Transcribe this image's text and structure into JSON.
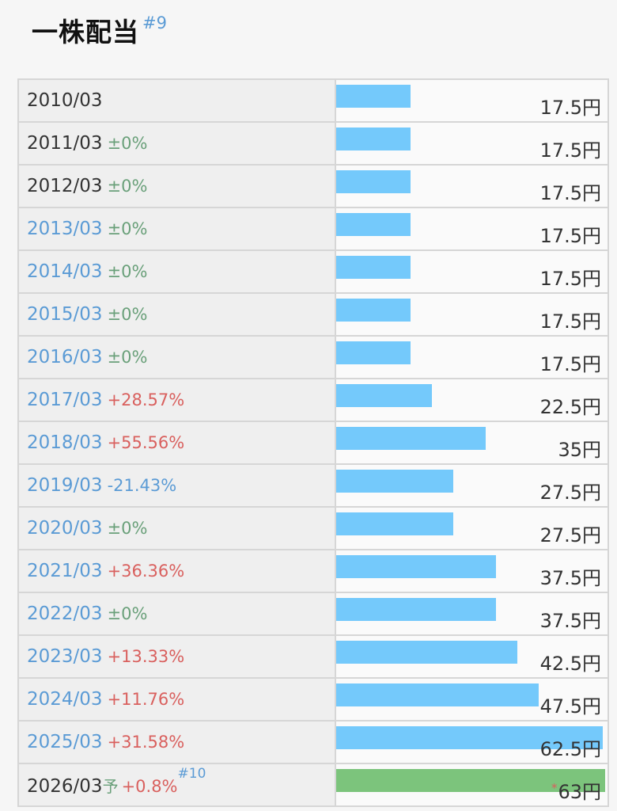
{
  "header": {
    "title": "一株配当",
    "note": "#9"
  },
  "rows": [
    {
      "year": "2010/03",
      "change": "",
      "value": "17.5円",
      "link": false
    },
    {
      "year": "2011/03",
      "change": "±0%",
      "value": "17.5円",
      "link": false
    },
    {
      "year": "2012/03",
      "change": "±0%",
      "value": "17.5円",
      "link": false
    },
    {
      "year": "2013/03",
      "change": "±0%",
      "value": "17.5円",
      "link": true
    },
    {
      "year": "2014/03",
      "change": "±0%",
      "value": "17.5円",
      "link": true
    },
    {
      "year": "2015/03",
      "change": "±0%",
      "value": "17.5円",
      "link": true
    },
    {
      "year": "2016/03",
      "change": "±0%",
      "value": "17.5円",
      "link": true
    },
    {
      "year": "2017/03",
      "change": "+28.57%",
      "value": "22.5円",
      "link": true
    },
    {
      "year": "2018/03",
      "change": "+55.56%",
      "value": "35円",
      "link": true
    },
    {
      "year": "2019/03",
      "change": "-21.43%",
      "value": "27.5円",
      "link": true
    },
    {
      "year": "2020/03",
      "change": "±0%",
      "value": "27.5円",
      "link": true
    },
    {
      "year": "2021/03",
      "change": "+36.36%",
      "value": "37.5円",
      "link": true
    },
    {
      "year": "2022/03",
      "change": "±0%",
      "value": "37.5円",
      "link": true
    },
    {
      "year": "2023/03",
      "change": "+13.33%",
      "value": "42.5円",
      "link": true
    },
    {
      "year": "2024/03",
      "change": "+11.76%",
      "value": "47.5円",
      "link": true
    },
    {
      "year": "2025/03",
      "change": "+31.58%",
      "value": "62.5円",
      "link": true
    }
  ],
  "forecast": {
    "year": "2026/03",
    "label": "予",
    "change": "+0.8%",
    "note": "#10",
    "asterisk": "*",
    "value": "63円"
  },
  "chart_data": {
    "type": "bar",
    "categories": [
      "2010/03",
      "2011/03",
      "2012/03",
      "2013/03",
      "2014/03",
      "2015/03",
      "2016/03",
      "2017/03",
      "2018/03",
      "2019/03",
      "2020/03",
      "2021/03",
      "2022/03",
      "2023/03",
      "2024/03",
      "2025/03",
      "2026/03"
    ],
    "values": [
      17.5,
      17.5,
      17.5,
      17.5,
      17.5,
      17.5,
      17.5,
      22.5,
      35,
      27.5,
      27.5,
      37.5,
      37.5,
      42.5,
      47.5,
      62.5,
      63
    ],
    "forecast_index": 16,
    "colors": {
      "actual": "#74c9fb",
      "forecast": "#7cc47c"
    }
  }
}
